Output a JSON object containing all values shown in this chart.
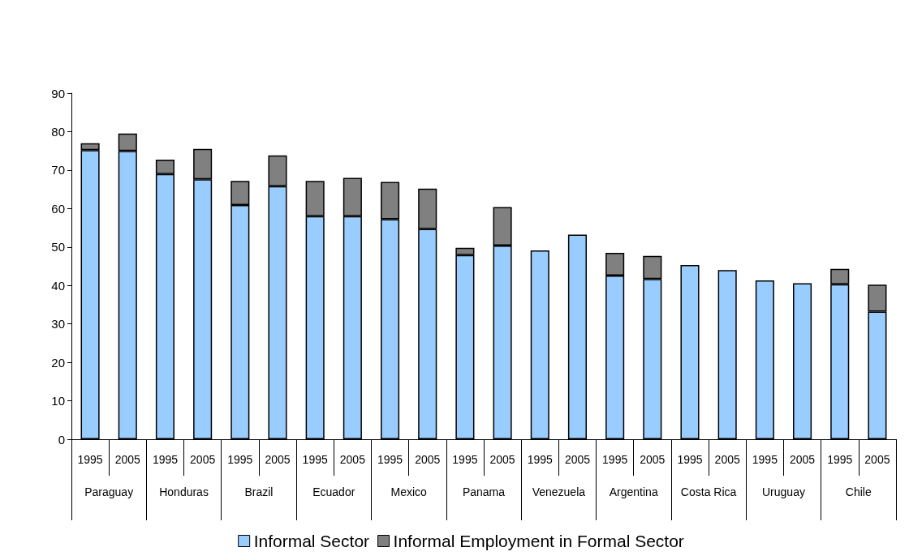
{
  "chart_data": {
    "type": "bar",
    "stacked": true,
    "categories": [
      "1995",
      "2005",
      "1995",
      "2005",
      "1995",
      "2005",
      "1995",
      "2005",
      "1995",
      "2005",
      "1995",
      "2005",
      "1995",
      "2005",
      "1995",
      "2005",
      "1995",
      "2005",
      "1995",
      "2005",
      "1995",
      "2005"
    ],
    "annotations": [
      "Paraguay",
      "Honduras",
      "Brazil",
      "Ecuador",
      "Mexico",
      "Panama",
      "Venezuela",
      "Argentina",
      "Costa Rica",
      "Uruguay",
      "Chile"
    ],
    "series": [
      {
        "name": "Informal Sector",
        "color": "#99ccff",
        "values": [
          75.2,
          75.0,
          69.0,
          67.6,
          60.9,
          65.8,
          58.0,
          58.0,
          57.2,
          54.7,
          47.9,
          50.4,
          49.1,
          53.2,
          42.6,
          41.7,
          45.3,
          44.0,
          41.3,
          40.6,
          40.3,
          33.2
        ]
      },
      {
        "name": "Informal Employment in Formal Sector",
        "color": "#808080",
        "values": [
          1.8,
          4.5,
          3.7,
          7.9,
          6.3,
          8.0,
          9.2,
          10.0,
          9.7,
          10.5,
          1.9,
          10.0,
          null,
          null,
          5.9,
          6.0,
          null,
          null,
          null,
          null,
          4.0,
          7.0
        ]
      }
    ],
    "ylim": [
      0,
      90
    ],
    "yticks": [
      0,
      10,
      20,
      30,
      40,
      50,
      60,
      70,
      80,
      90
    ],
    "grid": false,
    "legend": "bottom"
  }
}
